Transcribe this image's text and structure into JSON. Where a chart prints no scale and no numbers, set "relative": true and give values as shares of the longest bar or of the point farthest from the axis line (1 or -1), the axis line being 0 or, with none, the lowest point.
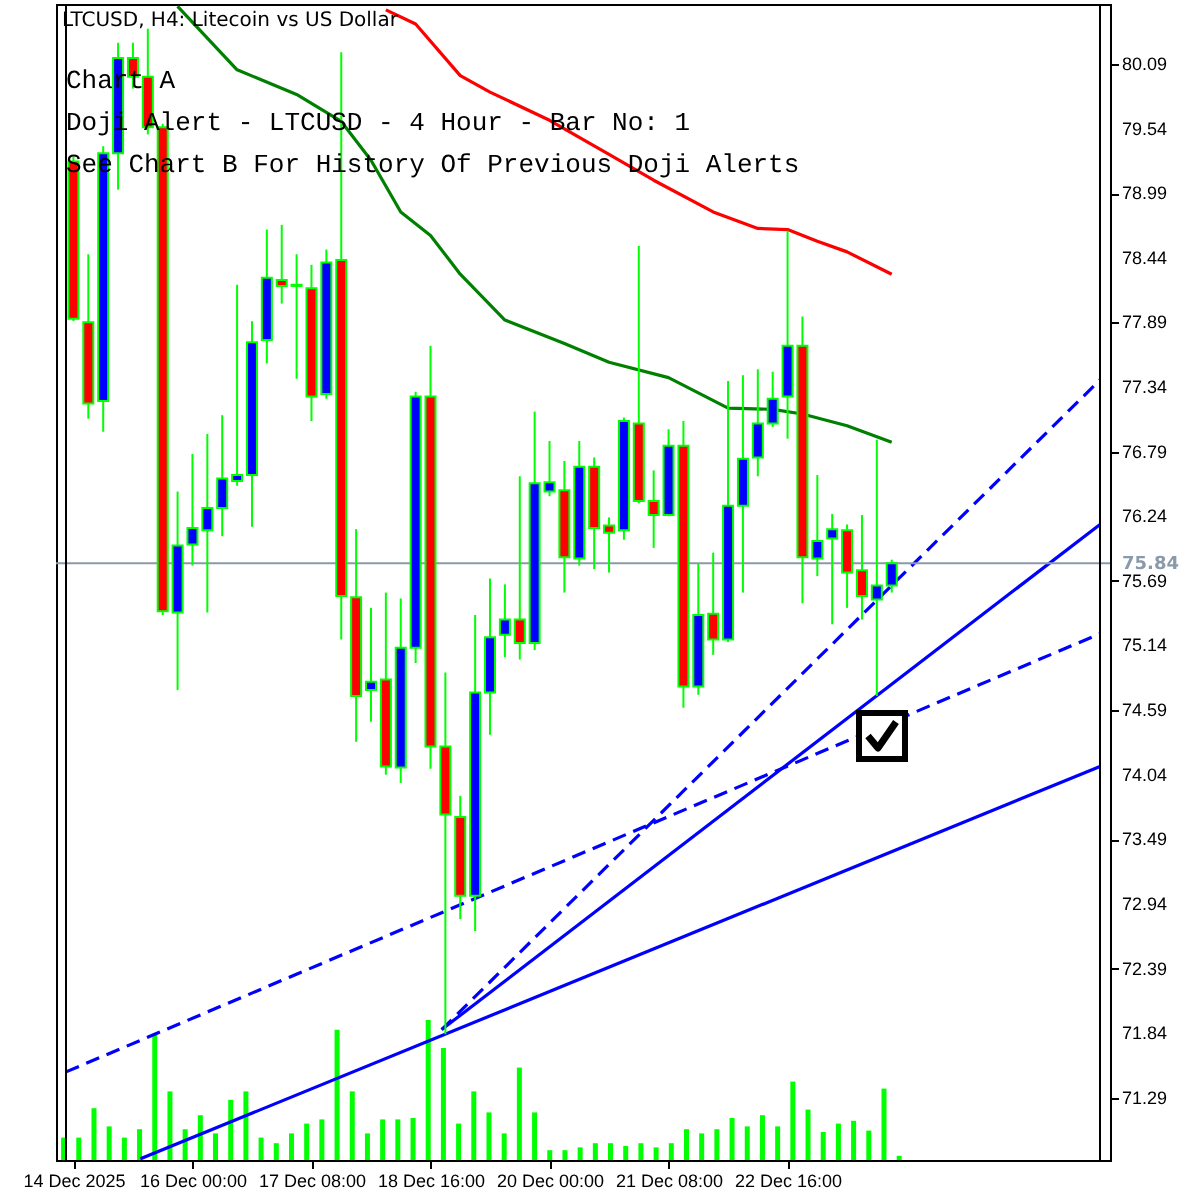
{
  "chart_data": [
    {
      "type": "candlestick",
      "title": "LTCUSD, H4: Litecoin vs US Dollar",
      "annotations": [
        "Chart A",
        "Doji Alert - LTCUSD - 4 Hour - Bar No: 1",
        "See Chart B For History Of Previous Doji Alerts"
      ],
      "x": [
        "2025-12-14T16:00",
        "2025-12-14T20:00",
        "2025-12-15T00:00",
        "2025-12-15T04:00",
        "2025-12-15T08:00",
        "2025-12-15T12:00",
        "2025-12-15T16:00",
        "2025-12-15T20:00",
        "2025-12-16T00:00",
        "2025-12-16T04:00",
        "2025-12-16T08:00",
        "2025-12-16T12:00",
        "2025-12-16T16:00",
        "2025-12-16T20:00",
        "2025-12-17T00:00",
        "2025-12-17T04:00",
        "2025-12-17T08:00",
        "2025-12-17T12:00",
        "2025-12-17T16:00",
        "2025-12-17T20:00",
        "2025-12-18T00:00",
        "2025-12-18T04:00",
        "2025-12-18T08:00",
        "2025-12-18T12:00",
        "2025-12-18T16:00",
        "2025-12-18T20:00",
        "2025-12-19T00:00",
        "2025-12-19T04:00",
        "2025-12-19T08:00",
        "2025-12-19T12:00",
        "2025-12-19T16:00",
        "2025-12-19T20:00",
        "2025-12-20T00:00",
        "2025-12-20T04:00",
        "2025-12-20T08:00",
        "2025-12-20T12:00",
        "2025-12-20T16:00",
        "2025-12-20T20:00",
        "2025-12-21T00:00",
        "2025-12-21T04:00",
        "2025-12-21T08:00",
        "2025-12-21T12:00",
        "2025-12-21T16:00",
        "2025-12-21T20:00",
        "2025-12-22T00:00",
        "2025-12-22T04:00",
        "2025-12-22T08:00",
        "2025-12-22T12:00",
        "2025-12-22T16:00",
        "2025-12-22T20:00",
        "2025-12-23T00:00",
        "2025-12-23T04:00",
        "2025-12-23T08:00",
        "2025-12-23T12:00",
        "2025-12-23T16:00",
        "2025-12-23T20:00"
      ],
      "ohlc": [
        [
          79.26,
          79.3,
          77.9,
          77.92
        ],
        [
          77.89,
          78.47,
          77.07,
          77.2
        ],
        [
          77.22,
          79.39,
          76.96,
          79.33
        ],
        [
          79.33,
          80.27,
          79.02,
          80.14
        ],
        [
          80.14,
          80.27,
          79.88,
          79.98
        ],
        [
          79.98,
          80.39,
          79.49,
          79.55
        ],
        [
          79.55,
          79.58,
          75.4,
          75.43
        ],
        [
          75.42,
          76.45,
          74.76,
          75.99
        ],
        [
          76.0,
          76.77,
          75.82,
          76.14
        ],
        [
          76.12,
          76.94,
          75.42,
          76.31
        ],
        [
          76.31,
          77.1,
          76.07,
          76.56
        ],
        [
          76.54,
          78.21,
          76.5,
          76.59
        ],
        [
          76.59,
          77.9,
          76.15,
          77.72
        ],
        [
          77.74,
          78.68,
          77.54,
          78.27
        ],
        [
          78.25,
          78.72,
          78.05,
          78.2
        ],
        [
          78.2,
          78.47,
          77.41,
          78.21
        ],
        [
          78.18,
          78.38,
          77.05,
          77.26
        ],
        [
          77.28,
          78.51,
          77.24,
          78.4
        ],
        [
          78.42,
          80.19,
          75.19,
          75.56
        ],
        [
          75.55,
          76.13,
          74.32,
          74.71
        ],
        [
          74.76,
          75.46,
          74.49,
          74.83
        ],
        [
          74.85,
          75.59,
          74.04,
          74.11
        ],
        [
          74.1,
          75.54,
          73.97,
          75.12
        ],
        [
          75.12,
          77.3,
          74.99,
          77.26
        ],
        [
          77.26,
          77.69,
          74.09,
          74.28
        ],
        [
          74.28,
          74.91,
          71.83,
          73.7
        ],
        [
          73.68,
          73.86,
          72.81,
          73.01
        ],
        [
          73.01,
          75.4,
          72.71,
          74.74
        ],
        [
          74.74,
          75.71,
          74.38,
          75.21
        ],
        [
          75.23,
          75.66,
          75.04,
          75.36
        ],
        [
          75.36,
          76.58,
          75.02,
          75.16
        ],
        [
          75.16,
          77.13,
          75.1,
          76.52
        ],
        [
          76.45,
          76.88,
          76.41,
          76.53
        ],
        [
          76.46,
          76.71,
          75.59,
          75.89
        ],
        [
          75.88,
          76.88,
          75.82,
          76.66
        ],
        [
          76.66,
          76.74,
          75.79,
          76.14
        ],
        [
          76.16,
          76.23,
          75.76,
          76.1
        ],
        [
          76.12,
          77.08,
          76.04,
          77.05
        ],
        [
          77.03,
          78.54,
          76.35,
          76.37
        ],
        [
          76.37,
          76.63,
          75.97,
          76.25
        ],
        [
          76.25,
          76.98,
          76.24,
          76.84
        ],
        [
          76.84,
          77.05,
          74.61,
          74.79
        ],
        [
          74.79,
          75.84,
          74.72,
          75.4
        ],
        [
          75.41,
          75.93,
          75.06,
          75.19
        ],
        [
          75.19,
          77.39,
          75.17,
          76.33
        ],
        [
          76.33,
          77.44,
          75.59,
          76.73
        ],
        [
          76.74,
          77.49,
          76.58,
          77.03
        ],
        [
          77.03,
          77.47,
          77.0,
          77.24
        ],
        [
          77.26,
          78.67,
          76.9,
          77.69
        ],
        [
          77.69,
          77.94,
          75.5,
          75.89
        ],
        [
          75.88,
          76.59,
          75.73,
          76.03
        ],
        [
          76.05,
          76.26,
          75.32,
          76.13
        ],
        [
          76.12,
          76.17,
          75.46,
          75.76
        ],
        [
          75.78,
          76.25,
          75.36,
          75.56
        ],
        [
          75.53,
          76.89,
          74.71,
          75.65
        ],
        [
          75.65,
          75.87,
          75.59,
          75.84
        ]
      ],
      "colors": [
        "#ff0000",
        "#ff0000",
        "#0000ff",
        "#0000ff",
        "#ff0000",
        "#ff0000",
        "#ff0000",
        "#0000ff",
        "#0000ff",
        "#0000ff",
        "#0000ff",
        "#0000ff",
        "#0000ff",
        "#0000ff",
        "#ff0000",
        "#0000ff",
        "#ff0000",
        "#0000ff",
        "#ff0000",
        "#ff0000",
        "#0000ff",
        "#ff0000",
        "#0000ff",
        "#0000ff",
        "#ff0000",
        "#ff0000",
        "#ff0000",
        "#0000ff",
        "#0000ff",
        "#0000ff",
        "#ff0000",
        "#0000ff",
        "#0000ff",
        "#ff0000",
        "#0000ff",
        "#ff0000",
        "#ff0000",
        "#0000ff",
        "#ff0000",
        "#ff0000",
        "#0000ff",
        "#ff0000",
        "#0000ff",
        "#ff0000",
        "#0000ff",
        "#0000ff",
        "#0000ff",
        "#0000ff",
        "#0000ff",
        "#ff0000",
        "#0000ff",
        "#0000ff",
        "#ff0000",
        "#ff0000",
        "#0000ff",
        "#0000ff"
      ],
      "series": [
        {
          "type": "line",
          "color": "#ff0000",
          "x": [
            "2025-12-18T04:00",
            "2025-12-18T12:00",
            "2025-12-19T00:00",
            "2025-12-19T08:00",
            "2025-12-20T00:00",
            "2025-12-20T16:00",
            "2025-12-21T04:00",
            "2025-12-21T20:00",
            "2025-12-22T08:00",
            "2025-12-22T16:00",
            "2025-12-23T00:00",
            "2025-12-23T08:00",
            "2025-12-23T20:00"
          ],
          "values": [
            80.55,
            80.43,
            79.99,
            79.85,
            79.61,
            79.32,
            79.1,
            78.83,
            78.69,
            78.68,
            78.58,
            78.49,
            78.3
          ]
        },
        {
          "type": "line",
          "color": "#008000",
          "x": [
            "2025-12-15T20:00",
            "2025-12-16T12:00",
            "2025-12-17T04:00",
            "2025-12-17T16:00",
            "2025-12-18T00:00",
            "2025-12-18T08:00",
            "2025-12-18T16:00",
            "2025-12-19T00:00",
            "2025-12-19T12:00",
            "2025-12-20T04:00",
            "2025-12-20T16:00",
            "2025-12-21T08:00",
            "2025-12-22T00:00",
            "2025-12-22T12:00",
            "2025-12-22T20:00",
            "2025-12-23T08:00",
            "2025-12-23T20:00"
          ],
          "values": [
            80.58,
            80.04,
            79.83,
            79.6,
            79.27,
            78.83,
            78.63,
            78.3,
            77.91,
            77.71,
            77.55,
            77.42,
            77.16,
            77.15,
            77.11,
            77.01,
            76.87
          ]
        },
        {
          "type": "line",
          "color": "#0000ff",
          "line_style": "dashed",
          "x": [
            "2025-12-18T19:00",
            "2025-12-26T04:00"
          ],
          "values": [
            71.87,
            77.4
          ]
        },
        {
          "type": "line",
          "color": "#0000ff",
          "line_style": "solid",
          "x": [
            "2025-12-18T19:00",
            "2025-12-26T04:00"
          ],
          "values": [
            71.87,
            76.17
          ]
        },
        {
          "type": "line",
          "color": "#0000ff",
          "line_style": "dashed",
          "x": [
            "2025-12-14T14:00",
            "2025-12-26T04:00"
          ],
          "values": [
            71.51,
            75.24
          ]
        },
        {
          "type": "line",
          "color": "#0000ff",
          "line_style": "solid",
          "x": [
            "2025-12-15T10:00",
            "2025-12-26T04:00"
          ],
          "values": [
            70.77,
            74.11
          ]
        }
      ],
      "ref_lines": [
        {
          "axis": "y",
          "value": 75.84,
          "label": "75.84",
          "color": "#8a9aaa"
        }
      ],
      "xlim": [
        "2025-12-14T14:00",
        "2025-12-26T04:00"
      ],
      "xticks": [
        {
          "value": "2025-12-14T16:00",
          "label": "14 Dec 2025"
        },
        {
          "value": "2025-12-16T00:00",
          "label": "16 Dec 00:00"
        },
        {
          "value": "2025-12-17T08:00",
          "label": "17 Dec 08:00"
        },
        {
          "value": "2025-12-18T16:00",
          "label": "18 Dec 16:00"
        },
        {
          "value": "2025-12-20T00:00",
          "label": "20 Dec 00:00"
        },
        {
          "value": "2025-12-21T08:00",
          "label": "21 Dec 08:00"
        },
        {
          "value": "2025-12-22T16:00",
          "label": "22 Dec 16:00"
        }
      ],
      "ylim": [
        70.76,
        80.6
      ],
      "yticks": [
        71.29,
        71.84,
        72.39,
        72.94,
        73.49,
        74.04,
        74.59,
        75.14,
        75.69,
        76.24,
        76.79,
        77.34,
        77.89,
        78.44,
        78.99,
        79.54,
        80.09
      ]
    },
    {
      "type": "bar",
      "relative": true,
      "color": "#00ff00",
      "categories": [
        null,
        null,
        null,
        null,
        null,
        null,
        null,
        null,
        null,
        null,
        null,
        null,
        null,
        null,
        null,
        null,
        null,
        null,
        null,
        null,
        null,
        null,
        null,
        null,
        null,
        null,
        null,
        null,
        null,
        null,
        null,
        null,
        null,
        null,
        null,
        null,
        null,
        null,
        null,
        null,
        null,
        null,
        null,
        null,
        null,
        null,
        null,
        null,
        null,
        null,
        null,
        null,
        null,
        null,
        null,
        null
      ],
      "values": [
        0.16,
        0.16,
        0.37,
        0.24,
        0.16,
        0.22,
        0.9,
        0.49,
        0.22,
        0.32,
        0.19,
        0.43,
        0.49,
        0.16,
        0.12,
        0.19,
        0.26,
        0.29,
        0.93,
        0.49,
        0.19,
        0.29,
        0.29,
        0.3,
        1,
        0.8,
        0.26,
        0.49,
        0.34,
        0.19,
        0.66,
        0.34,
        0.07,
        0.07,
        0.09,
        0.12,
        0.12,
        0.1,
        0.12,
        0.09,
        0.12,
        0.22,
        0.19,
        0.22,
        0.3,
        0.24,
        0.32,
        0.24,
        0.56,
        0.36,
        0.2,
        0.26,
        0.28,
        0.21,
        0.51,
        0.03
      ]
    }
  ]
}
